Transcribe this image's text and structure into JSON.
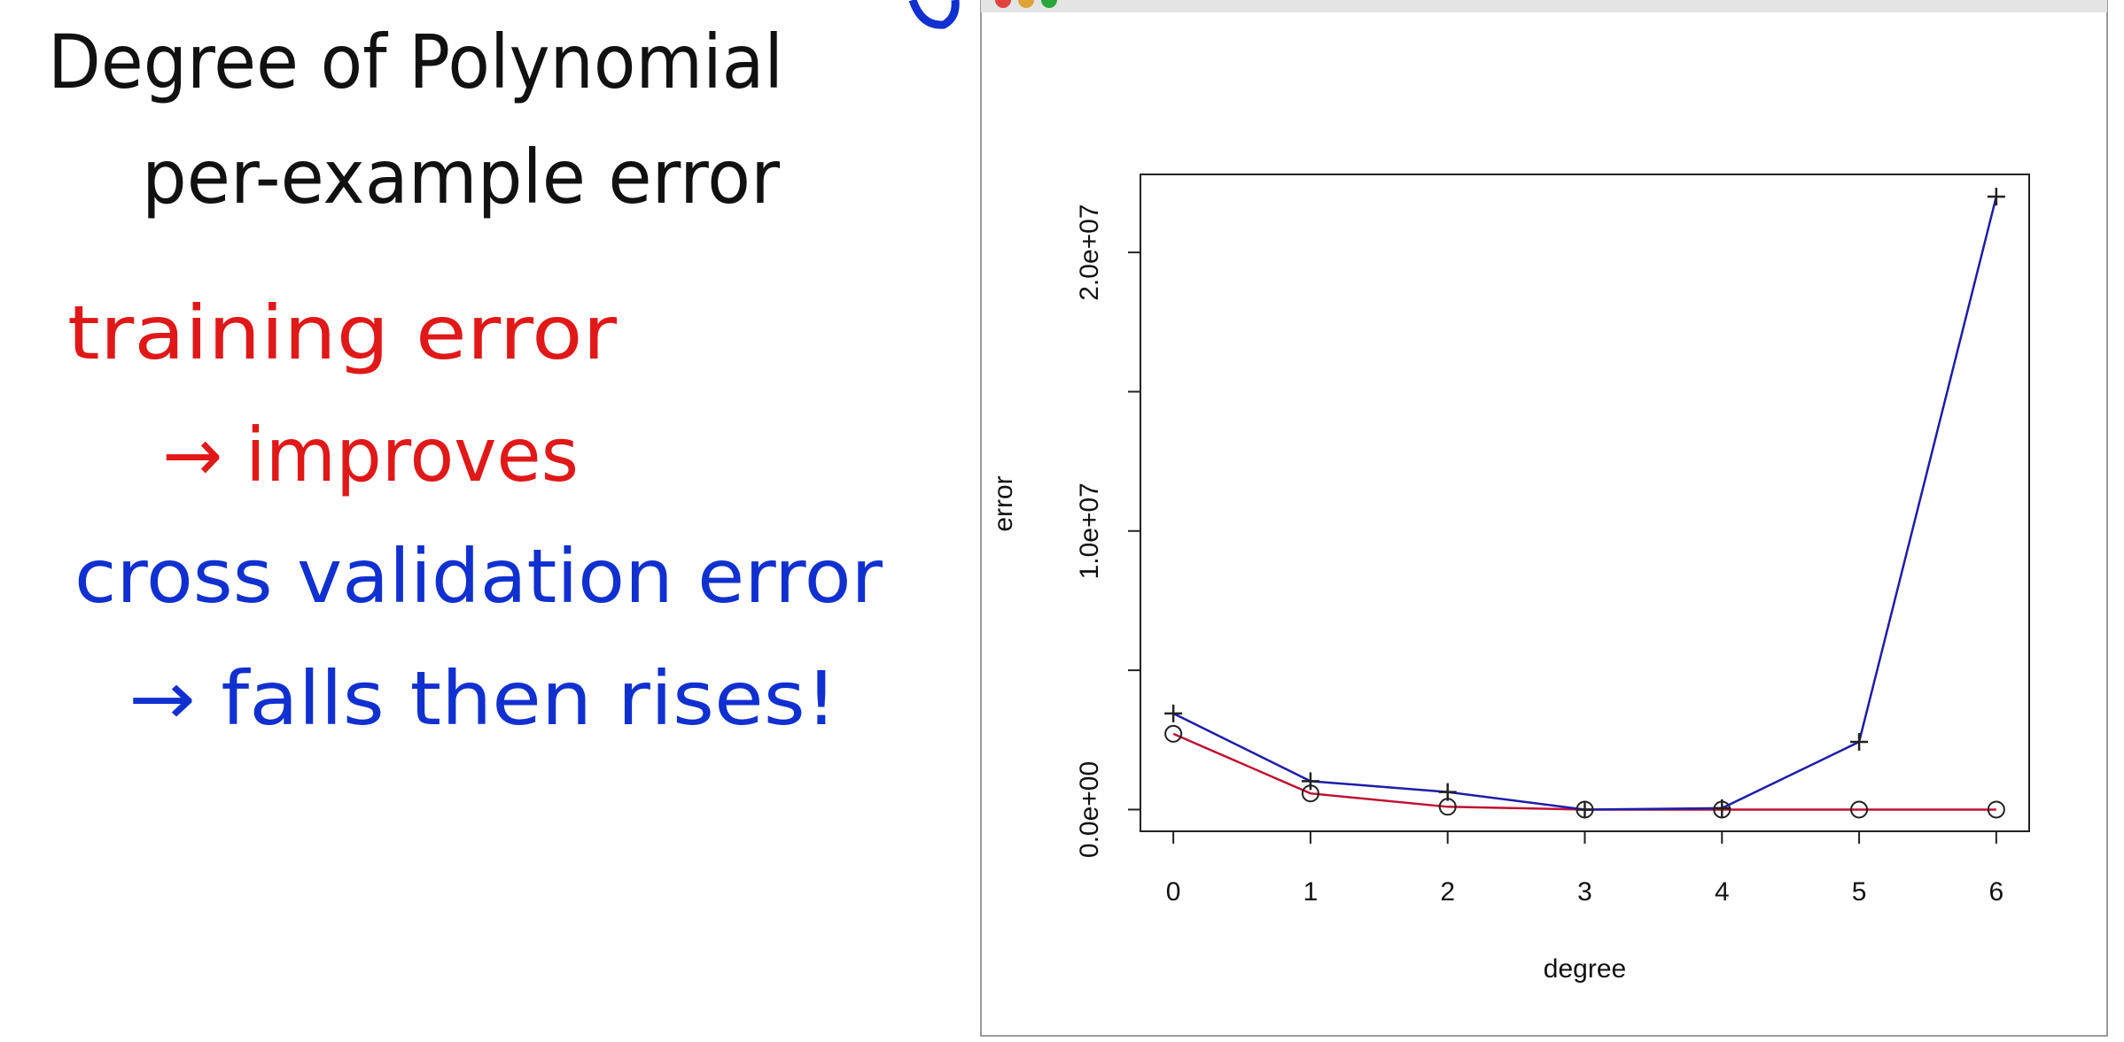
{
  "notes": [
    "Degree of Polynomial",
    "per-example error",
    "training error",
    "→ improves",
    "cross validation error",
    "→ falls then rises!"
  ],
  "chart_data": {
    "type": "line",
    "x_label": "degree",
    "y_label": "error",
    "x": [
      0,
      1,
      2,
      3,
      4,
      5,
      6
    ],
    "series": [
      {
        "color": "#c01030",
        "marker": "circle",
        "values": [
          2720000,
          580000,
          100000,
          0,
          0,
          0,
          0
        ]
      },
      {
        "color": "#1c1ca8",
        "marker": "plus",
        "values": [
          3450000,
          1020000,
          630000,
          0,
          50000,
          2430000,
          22000000
        ]
      }
    ],
    "xlim": [
      -0.24,
      6.24
    ],
    "xticks": [
      0,
      1,
      2,
      3,
      4,
      5,
      6
    ],
    "ylim": [
      -780000,
      22800000
    ],
    "yticks": [
      {
        "value": 0,
        "label": "0.0e+00"
      },
      {
        "value": 10000000,
        "label": "1.0e+07"
      },
      {
        "value": 20000000,
        "label": "2.0e+07"
      }
    ],
    "yminor_ticks": [
      5000000,
      15000000
    ]
  }
}
